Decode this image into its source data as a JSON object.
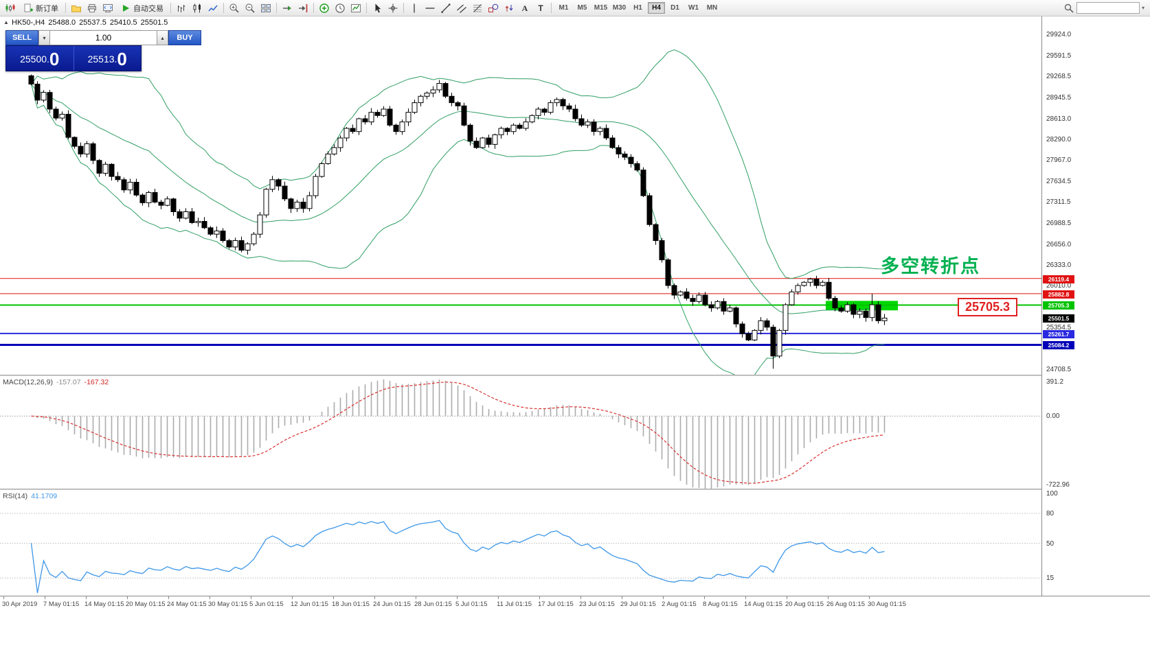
{
  "toolbar": {
    "new_order_label": "新订单",
    "auto_trading_label": "自动交易",
    "timeframes": [
      "M1",
      "M5",
      "M15",
      "M30",
      "H1",
      "H4",
      "D1",
      "W1",
      "MN"
    ],
    "active_timeframe": "H4",
    "search_value": ""
  },
  "icons": {
    "spinner_down": "▾",
    "spinner_up": "▴",
    "collapse_toggle": "▲",
    "search_dropdown": "▾"
  },
  "chart_header": {
    "symbol": "HK50-,H4",
    "open": "25488.0",
    "high": "25537.5",
    "low": "25410.5",
    "close": "25501.5"
  },
  "order_panel": {
    "sell_label": "SELL",
    "buy_label": "BUY",
    "volume": "1.00",
    "sell_price": "25500.",
    "sell_big": "0",
    "buy_price": "25513.",
    "buy_big": "0"
  },
  "annotations": {
    "turning_point_text": "多空转折点",
    "price_callout": "25705.3"
  },
  "main_chart": {
    "price_max": 30140,
    "price_min": 24640,
    "axis_labels": [
      "29924.0",
      "29591.5",
      "29268.5",
      "28945.5",
      "28613.0",
      "28290.0",
      "27967.0",
      "27634.5",
      "27311.5",
      "26988.5",
      "26656.0",
      "26333.0",
      "26010.0",
      "25354.5",
      "24708.5"
    ],
    "horizontal_lines": [
      {
        "price": 26119.4,
        "label": "26119.4",
        "color": "#e01212",
        "width": 1
      },
      {
        "price": 25882.8,
        "label": "25882.8",
        "color": "#e01212",
        "width": 1
      },
      {
        "price": 25705.3,
        "label": "25705.3",
        "color": "#00c300",
        "width": 2
      },
      {
        "price": 25261.7,
        "label": "25261.7",
        "color": "#2a2ae0",
        "width": 2
      },
      {
        "price": 25084.2,
        "label": "25084.2",
        "color": "#0000b8",
        "width": 3
      }
    ],
    "current_price": {
      "value": 25501.5,
      "label": "25501.5",
      "color": "#000000"
    },
    "highlight_zone": {
      "start_index": 129,
      "end_index": 140,
      "price_top": 25770,
      "price_bottom": 25622,
      "color": "#00d800"
    },
    "bollinger_color": "#2f9e63"
  },
  "macd_panel": {
    "title": "MACD(12,26,9)",
    "value_main": "-157.07",
    "value_signal": "-167.32",
    "scale_max": 391.2,
    "scale_min": -722.96,
    "scale_labels": {
      "top": "391.2",
      "zero": "0.00",
      "bottom": "-722.96"
    },
    "histogram_color": "#ababab",
    "signal_color": "#d93030"
  },
  "rsi_panel": {
    "title": "RSI(14)",
    "value": "41.1709",
    "top_label": "100",
    "levels": [
      80,
      50,
      15
    ],
    "line_color": "#3d97e8"
  },
  "time_axis": {
    "labels": [
      "30 Apr 2019",
      "7 May 01:15",
      "14 May 01:15",
      "20 May 01:15",
      "24 May 01:15",
      "30 May 01:15",
      "5 Jun 01:15",
      "12 Jun 01:15",
      "18 Jun 01:15",
      "24 Jun 01:15",
      "28 Jun 01:15",
      "5 Jul 01:15",
      "11 Jul 01:15",
      "17 Jul 01:15",
      "23 Jul 01:15",
      "29 Jul 01:15",
      "2 Aug 01:15",
      "8 Aug 01:15",
      "14 Aug 01:15",
      "20 Aug 01:15",
      "26 Aug 01:15",
      "30 Aug 01:15"
    ]
  },
  "chart_data": {
    "type": "candlestick",
    "symbol": "HK50",
    "timeframe": "H4",
    "visible_range": {
      "from": "30 Apr 2019",
      "to": "30 Aug 2019"
    },
    "price_axis_visible": [
      24708.5,
      29924.0
    ],
    "candles": {
      "first_open": 29280,
      "closes": [
        29150,
        28900,
        29020,
        28760,
        28620,
        28680,
        28320,
        28180,
        28060,
        28220,
        27960,
        27760,
        27900,
        27710,
        27660,
        27500,
        27620,
        27420,
        27300,
        27460,
        27310,
        27260,
        27360,
        27160,
        27060,
        27160,
        26990,
        27010,
        26910,
        26810,
        26860,
        26710,
        26610,
        26710,
        26560,
        26660,
        26810,
        27110,
        27510,
        27660,
        27560,
        27360,
        27210,
        27310,
        27210,
        27410,
        27710,
        27910,
        28060,
        28160,
        28310,
        28460,
        28410,
        28610,
        28560,
        28710,
        28660,
        28760,
        28510,
        28410,
        28560,
        28710,
        28860,
        28960,
        29010,
        29060,
        29160,
        28960,
        28860,
        28810,
        28510,
        28260,
        28160,
        28310,
        28210,
        28360,
        28460,
        28410,
        28510,
        28460,
        28560,
        28660,
        28760,
        28710,
        28860,
        28910,
        28810,
        28760,
        28610,
        28510,
        28560,
        28410,
        28460,
        28310,
        28160,
        28060,
        28010,
        27910,
        27810,
        27410,
        26960,
        26710,
        26410,
        26010,
        25860,
        25910,
        25810,
        25760,
        25860,
        25710,
        25660,
        25760,
        25610,
        25660,
        25410,
        25260,
        25160,
        25310,
        25460,
        25360,
        24910,
        25310,
        25710,
        25910,
        26010,
        26060,
        26110,
        26010,
        26060,
        25810,
        25660,
        25610,
        25710,
        25560,
        25610,
        25510,
        25710,
        25460,
        25501.5
      ],
      "wick_overrides": {
        "120": {
          "low": 24712
        },
        "136": {
          "high": 25882
        }
      }
    },
    "overlays": [
      {
        "type": "bollinger_bands",
        "period": 20,
        "deviation": 2
      }
    ],
    "indicators": [
      {
        "type": "MACD",
        "fast": 12,
        "slow": 26,
        "signal": 9,
        "current_main": -157.07,
        "current_signal": -167.32,
        "scale": [
          -722.96,
          391.2
        ]
      },
      {
        "type": "RSI",
        "period": 14,
        "current": 41.1709,
        "levels": [
          80,
          50,
          15
        ]
      }
    ]
  }
}
